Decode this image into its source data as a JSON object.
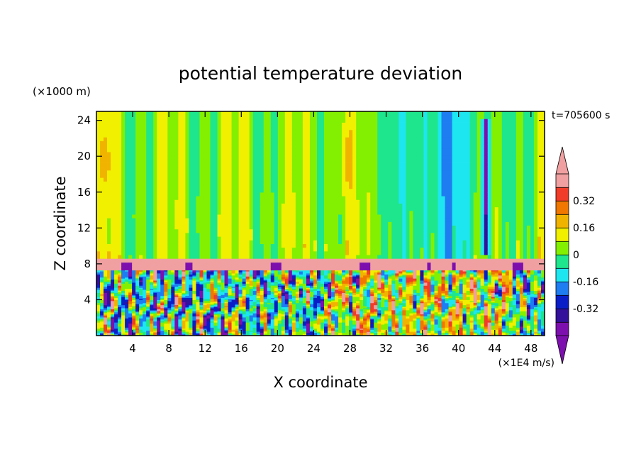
{
  "chart_data": {
    "type": "heatmap",
    "title": "potential temperature deviation",
    "xlabel": "X coordinate",
    "ylabel": "Z coordinate",
    "x_unit": "(×1E4 m/s)",
    "y_unit": "(×1000 m)",
    "time_label": "t=705600 s",
    "xlim": [
      0,
      49.5
    ],
    "ylim": [
      0,
      25
    ],
    "x_ticks": [
      4,
      8,
      12,
      16,
      20,
      24,
      28,
      32,
      36,
      40,
      44,
      48
    ],
    "y_ticks": [
      4,
      8,
      12,
      16,
      20,
      24
    ],
    "colorbar": {
      "levels": [
        -0.48,
        -0.4,
        -0.32,
        -0.24,
        -0.16,
        -0.08,
        0,
        0.08,
        0.16,
        0.24,
        0.32,
        0.4
      ],
      "colors": [
        "#7d0fae",
        "#33119a",
        "#0a1ec8",
        "#1e7df0",
        "#1ee6f0",
        "#1ee68c",
        "#82f000",
        "#f0f000",
        "#f0b400",
        "#f07800",
        "#f03c28",
        "#f0a0a0"
      ],
      "under_color": "#7d0fae",
      "over_color": "#f0a0a0",
      "tick_labels": [
        "0.32",
        "0.16",
        "0",
        "-0.16",
        "-0.32"
      ],
      "tick_values": [
        0.32,
        0.16,
        0,
        -0.16,
        -0.32
      ]
    },
    "field_regions": {
      "upper_background_value": 0.04,
      "tropopause_band_value": 0.44,
      "tropopause_z_range": [
        7.3,
        8.6
      ],
      "turbulent_layer_z_range": [
        0,
        7.3
      ]
    }
  }
}
